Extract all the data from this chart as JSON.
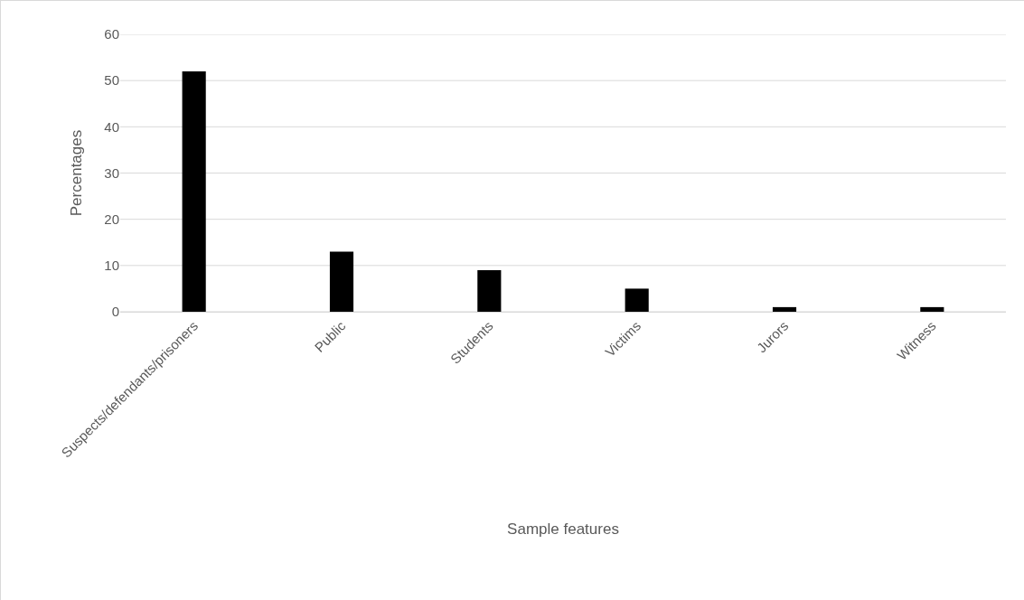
{
  "chart_data": {
    "type": "bar",
    "xlabel": "Sample features",
    "ylabel": "Percentages",
    "categories": [
      "Suspects/defendants/prisoners",
      "Public",
      "Students",
      "Victims",
      "Jurors",
      "Witness"
    ],
    "values": [
      52,
      13,
      9,
      5,
      1,
      1
    ],
    "color": "#000000",
    "ylim": [
      0,
      60
    ],
    "yticks": [
      0,
      10,
      20,
      30,
      40,
      50,
      60
    ],
    "grid": "y"
  }
}
